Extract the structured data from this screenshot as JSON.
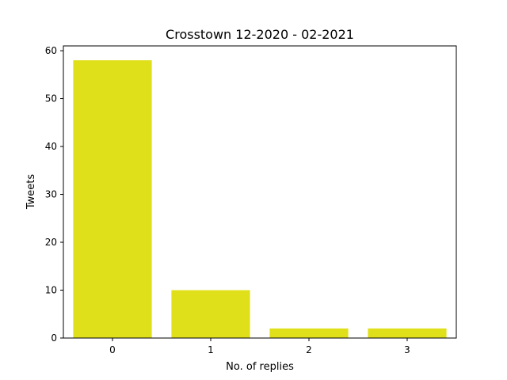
{
  "chart_data": {
    "type": "bar",
    "title": "Crosstown 12-2020 - 02-2021",
    "xlabel": "No. of replies",
    "ylabel": "Tweets",
    "categories": [
      "0",
      "1",
      "2",
      "3"
    ],
    "values": [
      58,
      10,
      2,
      2
    ],
    "ylim": [
      0,
      60
    ],
    "yticks": [
      "0",
      "10",
      "20",
      "30",
      "40",
      "50",
      "60"
    ],
    "grid": false,
    "bar_color": "#e0e01a"
  }
}
